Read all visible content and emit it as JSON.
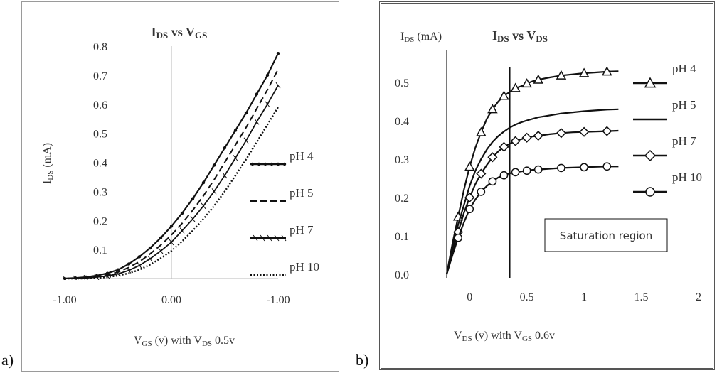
{
  "panel_letters": {
    "a": "a)",
    "b": "b)"
  },
  "chart_data": [
    {
      "type": "line",
      "panel": "a",
      "title": {
        "main": "I",
        "sub1": "DS",
        "mid": " vs V",
        "sub2": "GS"
      },
      "ylabel": {
        "main": "I",
        "sub": "DS",
        "rest": " (mA)"
      },
      "xlabel": {
        "a": "V",
        "a_sub": "GS",
        "b": " (v) with V",
        "b_sub": "DS",
        "c": " 0.5v"
      },
      "yticks": [
        "0.1",
        "0.2",
        "0.3",
        "0.4",
        "0.5",
        "0.6",
        "0.7",
        "0.8"
      ],
      "xticks": [
        "-1.00",
        "0.00",
        "-1.00"
      ],
      "ylim": [
        0,
        0.8
      ],
      "xlim": [
        -1.0,
        1.0
      ],
      "grid": false,
      "legend_position": "right",
      "x": [
        -1.0,
        -0.9,
        -0.8,
        -0.7,
        -0.6,
        -0.5,
        -0.4,
        -0.3,
        -0.2,
        -0.1,
        0.0,
        0.1,
        0.2,
        0.3,
        0.4,
        0.5,
        0.6,
        0.7,
        0.8,
        0.9,
        1.0
      ],
      "series": [
        {
          "name": "pH 4",
          "style": "dotted-markers",
          "values": [
            0.0,
            0.002,
            0.005,
            0.01,
            0.018,
            0.03,
            0.05,
            0.075,
            0.105,
            0.14,
            0.18,
            0.225,
            0.275,
            0.33,
            0.39,
            0.45,
            0.51,
            0.57,
            0.635,
            0.7,
            0.775
          ]
        },
        {
          "name": "pH 5",
          "style": "dashed",
          "values": [
            0.0,
            0.001,
            0.003,
            0.007,
            0.013,
            0.022,
            0.038,
            0.058,
            0.085,
            0.115,
            0.15,
            0.19,
            0.235,
            0.285,
            0.34,
            0.4,
            0.46,
            0.52,
            0.585,
            0.65,
            0.72
          ]
        },
        {
          "name": "pH 7",
          "style": "solid-ticks",
          "values": [
            0.0,
            0.0,
            0.002,
            0.005,
            0.009,
            0.016,
            0.028,
            0.045,
            0.068,
            0.095,
            0.125,
            0.165,
            0.205,
            0.25,
            0.3,
            0.355,
            0.415,
            0.475,
            0.54,
            0.6,
            0.665
          ]
        },
        {
          "name": "pH 10",
          "style": "dotted",
          "values": [
            0.0,
            0.0,
            0.0,
            0.002,
            0.005,
            0.01,
            0.018,
            0.03,
            0.048,
            0.07,
            0.095,
            0.128,
            0.165,
            0.205,
            0.25,
            0.3,
            0.355,
            0.41,
            0.47,
            0.53,
            0.59
          ]
        }
      ]
    },
    {
      "type": "line",
      "panel": "b",
      "title": {
        "main": "I",
        "sub1": "DS",
        "mid": " vs V",
        "sub2": "DS"
      },
      "ylabel": {
        "main": "I",
        "sub": "DS",
        "rest": " (mA)"
      },
      "xlabel": {
        "a": "V",
        "a_sub": "DS",
        "b": " (v) with V",
        "b_sub": "GS",
        "c": " 0.6v"
      },
      "yticks": [
        "0.0",
        "0.1",
        "0.2",
        "0.3",
        "0.4",
        "0.5"
      ],
      "xticks": [
        "0",
        "0.5",
        "1",
        "1.5",
        "2"
      ],
      "ylim": [
        0,
        0.55
      ],
      "xlim": [
        -0.25,
        2.0
      ],
      "grid": false,
      "legend_position": "right",
      "annotation": "Saturation region",
      "saturation_line_x": 0.35,
      "x": [
        -0.2,
        -0.15,
        -0.1,
        -0.05,
        0.0,
        0.05,
        0.1,
        0.15,
        0.2,
        0.25,
        0.3,
        0.35,
        0.4,
        0.45,
        0.5,
        0.55,
        0.6,
        0.7,
        0.8,
        0.9,
        1.0,
        1.1,
        1.2,
        1.3
      ],
      "series": [
        {
          "name": "pH 4",
          "marker": "triangle",
          "values": [
            0.0,
            0.08,
            0.15,
            0.22,
            0.28,
            0.33,
            0.37,
            0.405,
            0.43,
            0.45,
            0.465,
            0.475,
            0.485,
            0.49,
            0.497,
            0.503,
            0.507,
            0.513,
            0.518,
            0.521,
            0.524,
            0.526,
            0.528,
            0.529
          ]
        },
        {
          "name": "pH 5",
          "marker": "none",
          "values": [
            0.0,
            0.07,
            0.13,
            0.18,
            0.23,
            0.27,
            0.3,
            0.325,
            0.345,
            0.36,
            0.372,
            0.382,
            0.39,
            0.396,
            0.401,
            0.405,
            0.409,
            0.414,
            0.419,
            0.422,
            0.425,
            0.427,
            0.429,
            0.43
          ]
        },
        {
          "name": "pH 7",
          "marker": "diamond",
          "values": [
            0.0,
            0.06,
            0.11,
            0.16,
            0.2,
            0.235,
            0.262,
            0.285,
            0.305,
            0.32,
            0.332,
            0.34,
            0.347,
            0.352,
            0.356,
            0.359,
            0.361,
            0.365,
            0.368,
            0.37,
            0.371,
            0.372,
            0.373,
            0.374
          ]
        },
        {
          "name": "pH 10",
          "marker": "circle",
          "values": [
            0.0,
            0.05,
            0.095,
            0.135,
            0.17,
            0.195,
            0.215,
            0.23,
            0.242,
            0.252,
            0.258,
            0.263,
            0.266,
            0.268,
            0.27,
            0.272,
            0.273,
            0.275,
            0.277,
            0.278,
            0.279,
            0.28,
            0.281,
            0.281
          ]
        }
      ]
    }
  ]
}
